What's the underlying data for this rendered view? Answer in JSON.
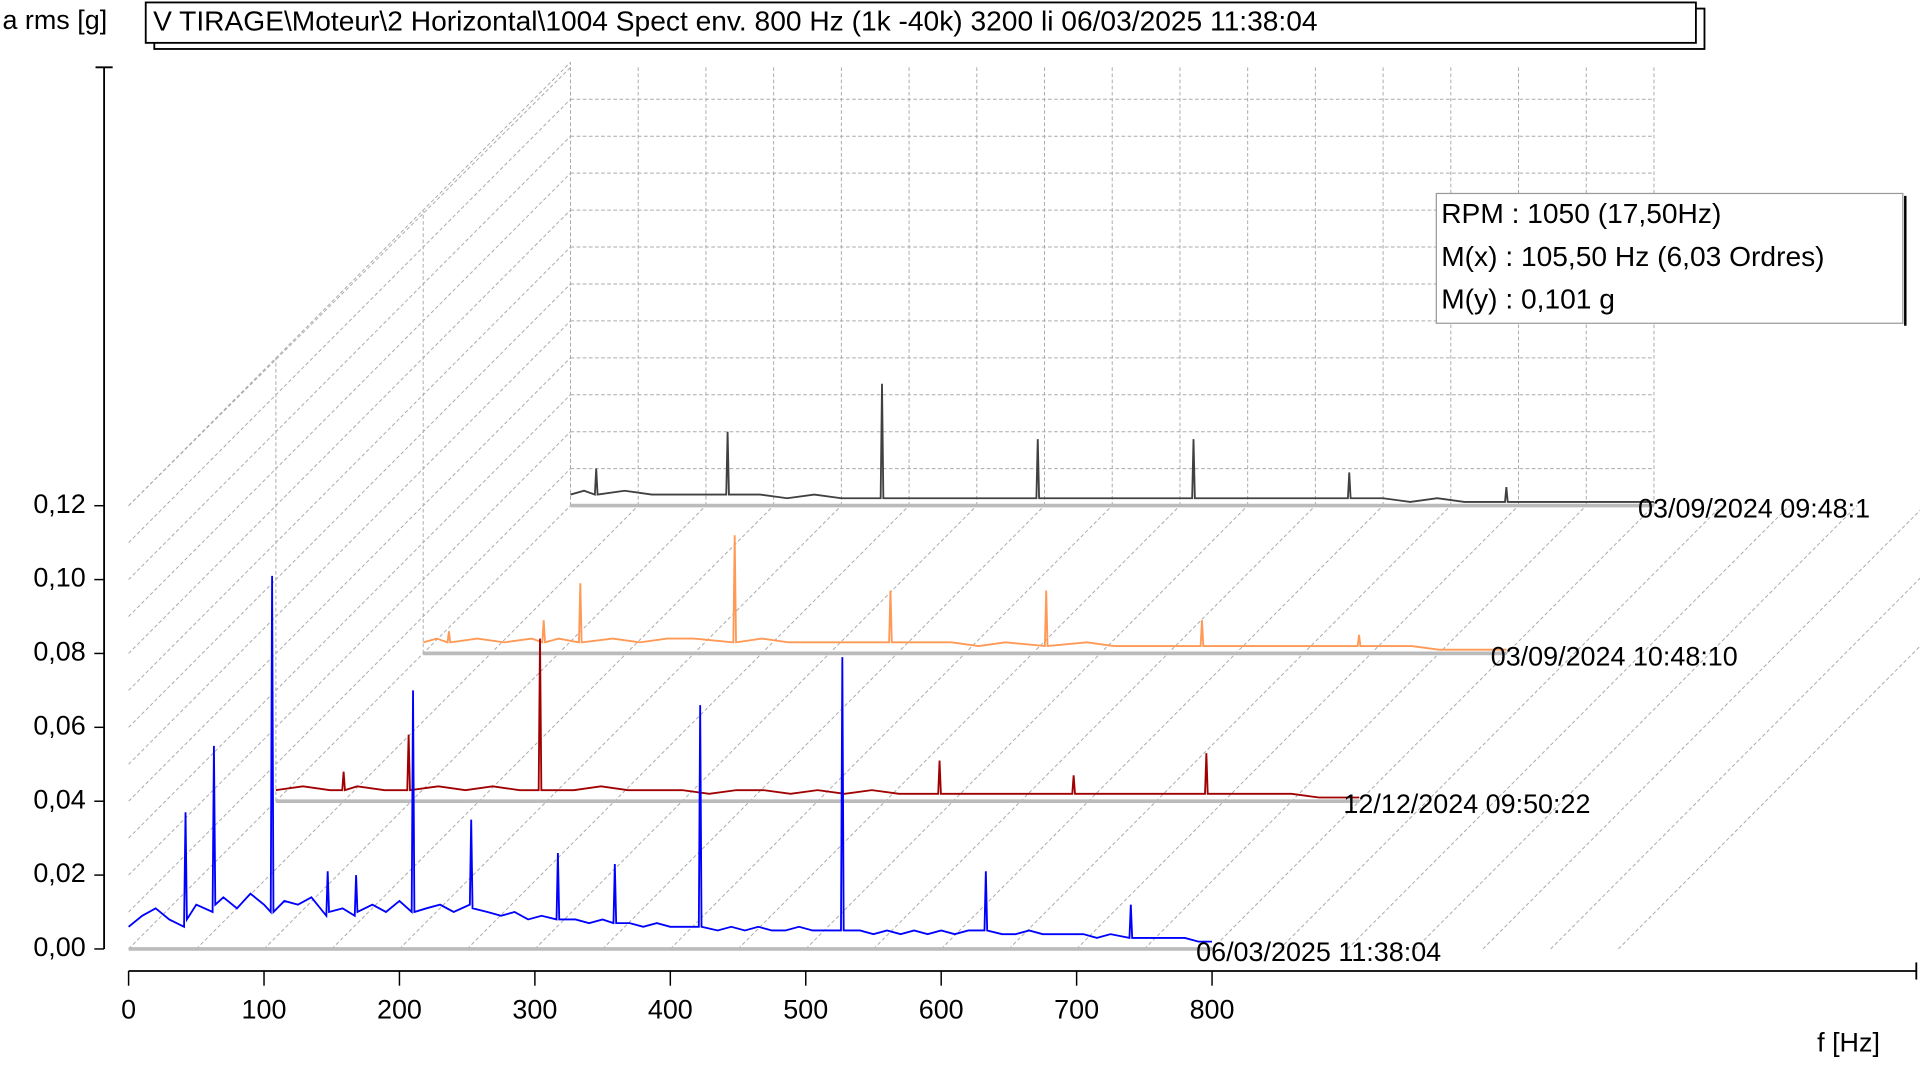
{
  "chart_data": {
    "type": "waterfall",
    "title": "V TIRAGE\\Moteur\\2 Horizontal\\1004 Spect env. 800 Hz (1k -40k) 3200 li 06/03/2025 11:38:04",
    "y_label": "a rms [g]",
    "x_label": "f [Hz]",
    "xlim": [
      0,
      1320
    ],
    "ylim": [
      0,
      0.24
    ],
    "xticks": [
      0,
      100,
      200,
      300,
      400,
      500,
      600,
      700,
      800
    ],
    "yticks": [
      {
        "value": 0,
        "label": "0,00"
      },
      {
        "value": 0.02,
        "label": "0,02"
      },
      {
        "value": 0.04,
        "label": "0,04"
      },
      {
        "value": 0.06,
        "label": "0,06"
      },
      {
        "value": 0.08,
        "label": "0,08"
      },
      {
        "value": 0.1,
        "label": "0,10"
      },
      {
        "value": 0.12,
        "label": "0,12"
      }
    ],
    "grid": true,
    "annotations": [
      "RPM : 1050 (17,50Hz)",
      "M(x) : 105,50 Hz (6,03 Ordres)",
      "M(y) : 0,101 g"
    ],
    "series": [
      {
        "name": "06/03/2025 11:38:04",
        "color": "#0000ff",
        "x": [
          0,
          10,
          20,
          30,
          41,
          42,
          43,
          50,
          62,
          63,
          64,
          70,
          80,
          90,
          100,
          105,
          106,
          107,
          115,
          125,
          135,
          146,
          147,
          148,
          158,
          167,
          168,
          169,
          180,
          190,
          200,
          209,
          210,
          211,
          220,
          230,
          240,
          252,
          253,
          254,
          265,
          275,
          285,
          295,
          305,
          316,
          317,
          318,
          330,
          340,
          350,
          358,
          359,
          360,
          370,
          380,
          390,
          400,
          410,
          421,
          422,
          423,
          435,
          445,
          455,
          465,
          475,
          485,
          495,
          505,
          515,
          526,
          527,
          528,
          540,
          550,
          560,
          570,
          580,
          590,
          600,
          610,
          620,
          632,
          633,
          634,
          645,
          655,
          665,
          675,
          685,
          695,
          705,
          715,
          725,
          739,
          740,
          741,
          750,
          760,
          770,
          780,
          790,
          800
        ],
        "values": [
          0.006,
          0.009,
          0.011,
          0.008,
          0.006,
          0.037,
          0.008,
          0.012,
          0.01,
          0.055,
          0.012,
          0.014,
          0.011,
          0.015,
          0.012,
          0.01,
          0.101,
          0.01,
          0.013,
          0.012,
          0.014,
          0.009,
          0.021,
          0.01,
          0.011,
          0.009,
          0.02,
          0.01,
          0.012,
          0.01,
          0.013,
          0.01,
          0.07,
          0.01,
          0.011,
          0.012,
          0.01,
          0.012,
          0.035,
          0.011,
          0.01,
          0.009,
          0.01,
          0.008,
          0.009,
          0.008,
          0.026,
          0.008,
          0.008,
          0.007,
          0.008,
          0.007,
          0.023,
          0.007,
          0.007,
          0.006,
          0.007,
          0.006,
          0.006,
          0.006,
          0.066,
          0.006,
          0.005,
          0.006,
          0.005,
          0.006,
          0.005,
          0.005,
          0.006,
          0.005,
          0.005,
          0.005,
          0.079,
          0.005,
          0.005,
          0.004,
          0.005,
          0.004,
          0.005,
          0.004,
          0.005,
          0.004,
          0.005,
          0.005,
          0.021,
          0.005,
          0.004,
          0.004,
          0.005,
          0.004,
          0.004,
          0.004,
          0.004,
          0.003,
          0.004,
          0.003,
          0.012,
          0.003,
          0.003,
          0.003,
          0.003,
          0.003,
          0.002,
          0.002
        ]
      },
      {
        "name": "12/12/2024 09:50:22",
        "color": "#a00000",
        "x": [
          0,
          20,
          40,
          49,
          50,
          51,
          60,
          80,
          97,
          98,
          99,
          120,
          140,
          160,
          180,
          194,
          195,
          196,
          220,
          240,
          260,
          280,
          300,
          320,
          340,
          360,
          380,
          400,
          420,
          440,
          460,
          489,
          490,
          491,
          510,
          530,
          550,
          570,
          588,
          589,
          590,
          610,
          630,
          650,
          670,
          686,
          687,
          688,
          710,
          730,
          750,
          770,
          800
        ],
        "values": [
          0.003,
          0.004,
          0.003,
          0.003,
          0.008,
          0.003,
          0.004,
          0.003,
          0.003,
          0.018,
          0.003,
          0.004,
          0.003,
          0.004,
          0.003,
          0.003,
          0.044,
          0.003,
          0.003,
          0.004,
          0.003,
          0.003,
          0.003,
          0.002,
          0.003,
          0.003,
          0.002,
          0.003,
          0.002,
          0.003,
          0.002,
          0.002,
          0.011,
          0.002,
          0.002,
          0.002,
          0.002,
          0.002,
          0.002,
          0.007,
          0.002,
          0.002,
          0.002,
          0.002,
          0.002,
          0.002,
          0.013,
          0.002,
          0.002,
          0.002,
          0.002,
          0.001,
          0.001
        ]
      },
      {
        "name": "03/09/2024 10:48:10",
        "color": "#ff9955",
        "x": [
          0,
          10,
          18,
          19,
          20,
          40,
          60,
          80,
          88,
          89,
          90,
          100,
          115,
          116,
          117,
          140,
          160,
          180,
          200,
          229,
          230,
          231,
          250,
          270,
          290,
          310,
          330,
          344,
          345,
          346,
          370,
          390,
          410,
          430,
          459,
          460,
          461,
          490,
          510,
          530,
          550,
          574,
          575,
          576,
          600,
          620,
          640,
          660,
          690,
          691,
          692,
          710,
          730,
          750,
          770,
          800
        ],
        "values": [
          0.003,
          0.004,
          0.003,
          0.006,
          0.003,
          0.004,
          0.003,
          0.004,
          0.003,
          0.009,
          0.003,
          0.004,
          0.003,
          0.019,
          0.003,
          0.004,
          0.003,
          0.004,
          0.004,
          0.003,
          0.032,
          0.003,
          0.004,
          0.003,
          0.003,
          0.003,
          0.003,
          0.003,
          0.017,
          0.003,
          0.003,
          0.003,
          0.002,
          0.003,
          0.002,
          0.017,
          0.002,
          0.003,
          0.002,
          0.002,
          0.002,
          0.002,
          0.009,
          0.002,
          0.002,
          0.002,
          0.002,
          0.002,
          0.002,
          0.005,
          0.002,
          0.002,
          0.002,
          0.001,
          0.001,
          0.001
        ]
      },
      {
        "name": "03/09/2024 09:48:1",
        "color": "#404040",
        "x": [
          0,
          10,
          18,
          19,
          20,
          40,
          60,
          80,
          100,
          115,
          116,
          117,
          140,
          160,
          180,
          200,
          229,
          230,
          231,
          260,
          280,
          300,
          320,
          344,
          345,
          346,
          370,
          390,
          410,
          430,
          459,
          460,
          461,
          490,
          510,
          530,
          550,
          574,
          575,
          576,
          600,
          620,
          640,
          660,
          690,
          691,
          692,
          710,
          730,
          750,
          770,
          800
        ],
        "values": [
          0.003,
          0.004,
          0.003,
          0.01,
          0.003,
          0.004,
          0.003,
          0.003,
          0.003,
          0.003,
          0.02,
          0.003,
          0.003,
          0.002,
          0.003,
          0.002,
          0.002,
          0.033,
          0.002,
          0.002,
          0.002,
          0.002,
          0.002,
          0.002,
          0.018,
          0.002,
          0.002,
          0.002,
          0.002,
          0.002,
          0.002,
          0.018,
          0.002,
          0.002,
          0.002,
          0.002,
          0.002,
          0.002,
          0.009,
          0.002,
          0.002,
          0.001,
          0.002,
          0.001,
          0.001,
          0.005,
          0.001,
          0.001,
          0.001,
          0.001,
          0.001,
          0.001
        ]
      }
    ]
  }
}
